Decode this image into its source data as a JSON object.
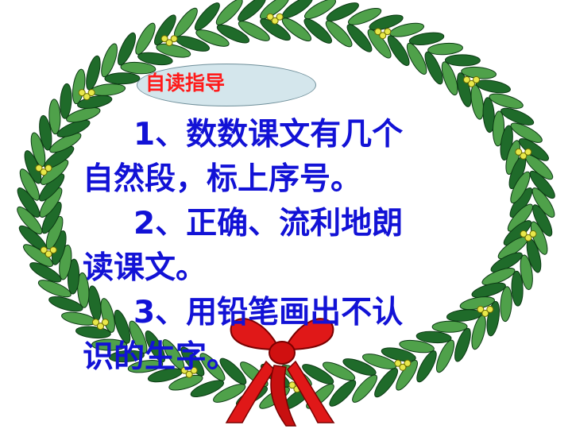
{
  "badge": {
    "label": "自读指导"
  },
  "instructions": [
    {
      "line1": "1、数数课文有几个",
      "line2": "自然段，标上序号。"
    },
    {
      "line1": "2、正确、流利地朗",
      "line2": "读课文。"
    },
    {
      "line1": "3、用铅笔画出不认",
      "line2": "识的生字。"
    }
  ],
  "colors": {
    "text": "#1212d6",
    "badge_text": "#ff1a1a",
    "badge_fill": "#d4e6ec",
    "leaf_dark": "#1f6b2a",
    "leaf_light": "#4fa14a",
    "berry": "#e8e84a",
    "ribbon": "#e01818"
  },
  "icons": [
    "laurel-wreath",
    "red-ribbon-bow"
  ]
}
